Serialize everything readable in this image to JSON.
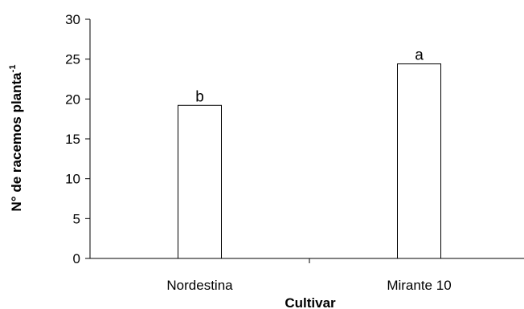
{
  "chart_data": {
    "type": "bar",
    "categories": [
      "Nordestina",
      "Mirante 10"
    ],
    "values": [
      19.2,
      24.4
    ],
    "data_labels": [
      "b",
      "a"
    ],
    "title": "",
    "xlabel": "Cultivar",
    "ylabel": "N° de racemos planta",
    "ylabel_superscript": "-1",
    "ylim": [
      0,
      30
    ],
    "yticks": [
      0,
      5,
      10,
      15,
      20,
      25,
      30
    ],
    "grid": false,
    "bar_fill": "#ffffff",
    "bar_stroke": "#000000"
  }
}
